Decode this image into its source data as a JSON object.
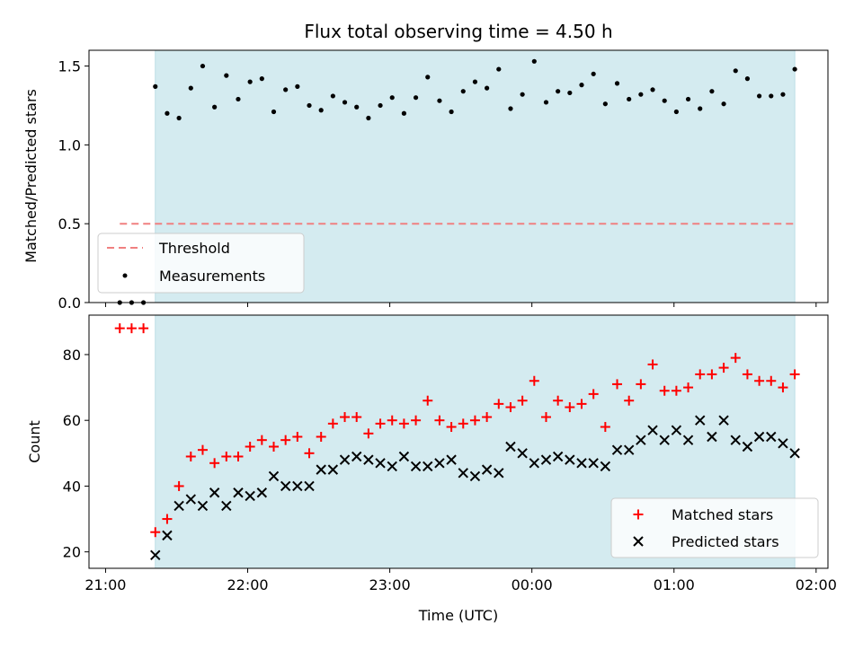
{
  "chart_data": [
    {
      "type": "scatter",
      "title": "Flux total observing time = 4.50 h",
      "ylabel": "Matched/Predicted stars",
      "xlabel": "",
      "ylim": [
        0,
        1.6
      ],
      "yticks": [
        0.0,
        0.5,
        1.0,
        1.5
      ],
      "ytick_labels": [
        "0.0",
        "0.5",
        "1.0",
        "1.5"
      ],
      "xlim": [
        "20:53",
        "02:05"
      ],
      "xticks": [
        "21:00",
        "22:00",
        "23:00",
        "00:00",
        "01:00",
        "02:00"
      ],
      "shaded_span": [
        "21:21",
        "23:59+01:51"
      ],
      "shade_color": "#d4ebf0",
      "legend_position": "lower-left",
      "threshold": {
        "name": "Threshold",
        "value": 0.5,
        "x_range": [
          "21:06",
          "01:51"
        ],
        "color": "#f08080"
      },
      "series": [
        {
          "name": "Measurements",
          "color": "#000000",
          "marker": "dot",
          "points": [
            [
              "21:06",
              0.0
            ],
            [
              "21:11",
              0.0
            ],
            [
              "21:16",
              0.0
            ],
            [
              "21:21",
              1.37
            ],
            [
              "21:26",
              1.2
            ],
            [
              "21:31",
              1.17
            ],
            [
              "21:36",
              1.36
            ],
            [
              "21:41",
              1.5
            ],
            [
              "21:46",
              1.24
            ],
            [
              "21:51",
              1.44
            ],
            [
              "21:56",
              1.29
            ],
            [
              "22:01",
              1.4
            ],
            [
              "22:06",
              1.42
            ],
            [
              "22:11",
              1.21
            ],
            [
              "22:16",
              1.35
            ],
            [
              "22:21",
              1.37
            ],
            [
              "22:26",
              1.25
            ],
            [
              "22:31",
              1.22
            ],
            [
              "22:36",
              1.31
            ],
            [
              "22:41",
              1.27
            ],
            [
              "22:46",
              1.24
            ],
            [
              "22:51",
              1.17
            ],
            [
              "22:56",
              1.25
            ],
            [
              "23:01",
              1.3
            ],
            [
              "23:06",
              1.2
            ],
            [
              "23:11",
              1.3
            ],
            [
              "23:16",
              1.43
            ],
            [
              "23:21",
              1.28
            ],
            [
              "23:26",
              1.21
            ],
            [
              "23:31",
              1.34
            ],
            [
              "23:36",
              1.4
            ],
            [
              "23:41",
              1.36
            ],
            [
              "23:46",
              1.48
            ],
            [
              "23:51",
              1.23
            ],
            [
              "23:56",
              1.32
            ],
            [
              "00:01",
              1.53
            ],
            [
              "00:06",
              1.27
            ],
            [
              "00:11",
              1.34
            ],
            [
              "00:16",
              1.33
            ],
            [
              "00:21",
              1.38
            ],
            [
              "00:26",
              1.45
            ],
            [
              "00:31",
              1.26
            ],
            [
              "00:36",
              1.39
            ],
            [
              "00:41",
              1.29
            ],
            [
              "00:46",
              1.32
            ],
            [
              "00:51",
              1.35
            ],
            [
              "00:56",
              1.28
            ],
            [
              "01:01",
              1.21
            ],
            [
              "01:06",
              1.29
            ],
            [
              "01:11",
              1.23
            ],
            [
              "01:16",
              1.34
            ],
            [
              "01:21",
              1.26
            ],
            [
              "01:26",
              1.47
            ],
            [
              "01:31",
              1.42
            ],
            [
              "01:36",
              1.31
            ],
            [
              "01:41",
              1.31
            ],
            [
              "01:46",
              1.32
            ],
            [
              "01:51",
              1.48
            ]
          ]
        }
      ]
    },
    {
      "type": "scatter",
      "title": "",
      "ylabel": "Count",
      "xlabel": "Time (UTC)",
      "ylim": [
        15,
        92
      ],
      "yticks": [
        20,
        40,
        60,
        80
      ],
      "ytick_labels": [
        "20",
        "40",
        "60",
        "80"
      ],
      "xlim": [
        "20:53",
        "02:05"
      ],
      "xticks": [
        "21:00",
        "22:00",
        "23:00",
        "00:00",
        "01:00",
        "02:00"
      ],
      "xtick_labels": [
        "21:00",
        "22:00",
        "23:00",
        "00:00",
        "01:00",
        "02:00"
      ],
      "legend_position": "lower-right",
      "series": [
        {
          "name": "Matched stars",
          "color": "#ff0000",
          "marker": "plus",
          "points": [
            [
              "21:06",
              88
            ],
            [
              "21:11",
              88
            ],
            [
              "21:16",
              88
            ],
            [
              "21:21",
              26
            ],
            [
              "21:26",
              30
            ],
            [
              "21:31",
              40
            ],
            [
              "21:36",
              49
            ],
            [
              "21:41",
              51
            ],
            [
              "21:46",
              47
            ],
            [
              "21:51",
              49
            ],
            [
              "21:56",
              49
            ],
            [
              "22:01",
              52
            ],
            [
              "22:06",
              54
            ],
            [
              "22:11",
              52
            ],
            [
              "22:16",
              54
            ],
            [
              "22:21",
              55
            ],
            [
              "22:26",
              50
            ],
            [
              "22:31",
              55
            ],
            [
              "22:36",
              59
            ],
            [
              "22:41",
              61
            ],
            [
              "22:46",
              61
            ],
            [
              "22:51",
              56
            ],
            [
              "22:56",
              59
            ],
            [
              "23:01",
              60
            ],
            [
              "23:06",
              59
            ],
            [
              "23:11",
              60
            ],
            [
              "23:16",
              66
            ],
            [
              "23:21",
              60
            ],
            [
              "23:26",
              58
            ],
            [
              "23:31",
              59
            ],
            [
              "23:36",
              60
            ],
            [
              "23:41",
              61
            ],
            [
              "23:46",
              65
            ],
            [
              "23:51",
              64
            ],
            [
              "23:56",
              66
            ],
            [
              "00:01",
              72
            ],
            [
              "00:06",
              61
            ],
            [
              "00:11",
              66
            ],
            [
              "00:16",
              64
            ],
            [
              "00:21",
              65
            ],
            [
              "00:26",
              68
            ],
            [
              "00:31",
              58
            ],
            [
              "00:36",
              71
            ],
            [
              "00:41",
              66
            ],
            [
              "00:46",
              71
            ],
            [
              "00:51",
              77
            ],
            [
              "00:56",
              69
            ],
            [
              "01:01",
              69
            ],
            [
              "01:06",
              70
            ],
            [
              "01:11",
              74
            ],
            [
              "01:16",
              74
            ],
            [
              "01:21",
              76
            ],
            [
              "01:26",
              79
            ],
            [
              "01:31",
              74
            ],
            [
              "01:36",
              72
            ],
            [
              "01:41",
              72
            ],
            [
              "01:46",
              70
            ],
            [
              "01:51",
              74
            ]
          ]
        },
        {
          "name": "Predicted stars",
          "color": "#000000",
          "marker": "x",
          "points": [
            [
              "21:21",
              19
            ],
            [
              "21:26",
              25
            ],
            [
              "21:31",
              34
            ],
            [
              "21:36",
              36
            ],
            [
              "21:41",
              34
            ],
            [
              "21:46",
              38
            ],
            [
              "21:51",
              34
            ],
            [
              "21:56",
              38
            ],
            [
              "22:01",
              37
            ],
            [
              "22:06",
              38
            ],
            [
              "22:11",
              43
            ],
            [
              "22:16",
              40
            ],
            [
              "22:21",
              40
            ],
            [
              "22:26",
              40
            ],
            [
              "22:31",
              45
            ],
            [
              "22:36",
              45
            ],
            [
              "22:41",
              48
            ],
            [
              "22:46",
              49
            ],
            [
              "22:51",
              48
            ],
            [
              "22:56",
              47
            ],
            [
              "23:01",
              46
            ],
            [
              "23:06",
              49
            ],
            [
              "23:11",
              46
            ],
            [
              "23:16",
              46
            ],
            [
              "23:21",
              47
            ],
            [
              "23:26",
              48
            ],
            [
              "23:31",
              44
            ],
            [
              "23:36",
              43
            ],
            [
              "23:41",
              45
            ],
            [
              "23:46",
              44
            ],
            [
              "23:51",
              52
            ],
            [
              "23:56",
              50
            ],
            [
              "00:01",
              47
            ],
            [
              "00:06",
              48
            ],
            [
              "00:11",
              49
            ],
            [
              "00:16",
              48
            ],
            [
              "00:21",
              47
            ],
            [
              "00:26",
              47
            ],
            [
              "00:31",
              46
            ],
            [
              "00:36",
              51
            ],
            [
              "00:41",
              51
            ],
            [
              "00:46",
              54
            ],
            [
              "00:51",
              57
            ],
            [
              "00:56",
              54
            ],
            [
              "01:01",
              57
            ],
            [
              "01:06",
              54
            ],
            [
              "01:11",
              60
            ],
            [
              "01:16",
              55
            ],
            [
              "01:21",
              60
            ],
            [
              "01:26",
              54
            ],
            [
              "01:31",
              52
            ],
            [
              "01:36",
              55
            ],
            [
              "01:41",
              55
            ],
            [
              "01:46",
              53
            ],
            [
              "01:51",
              50
            ]
          ]
        }
      ]
    }
  ]
}
